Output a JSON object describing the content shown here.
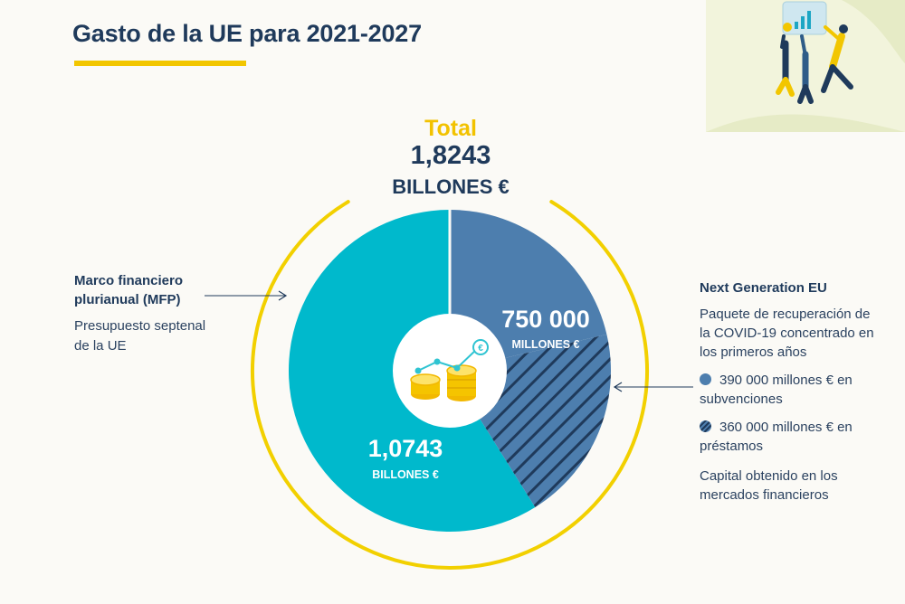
{
  "title": "Gasto de la UE para 2021-2027",
  "colors": {
    "mfp": "#00b9cc",
    "ngeu": "#4d7eae",
    "hatch": "#1f3a5b",
    "ring": "#f2d000",
    "title": "#1f3a5b",
    "accent": "#f2c200"
  },
  "chart_data": {
    "type": "pie",
    "total": {
      "label": "Total",
      "value": "1,8243",
      "unit": "BILLONES €"
    },
    "segments": [
      {
        "name": "Marco financiero plurianual (MFP)",
        "value_eur_billion": 1074.3,
        "value_text": "1,0743",
        "unit_text": "BILLONES €",
        "color": "#00b9cc",
        "pattern": "solid"
      },
      {
        "name": "Next Generation EU",
        "value_eur_billion": 750,
        "value_text": "750 000",
        "unit_text": "MILLONES €",
        "color": "#4d7eae",
        "pattern": "solid",
        "subsegments": [
          {
            "name": "subvenciones",
            "value_eur_billion": 390,
            "pattern": "solid"
          },
          {
            "name": "préstamos",
            "value_eur_billion": 360,
            "pattern": "hatched"
          }
        ]
      }
    ],
    "center_icon": "coins-growth-icon"
  },
  "left_annotation": {
    "heading": "Marco financiero plurianual (MFP)",
    "description": "Presupuesto septenal de la UE"
  },
  "right_annotation": {
    "heading": "Next Generation EU",
    "description": "Paquete de recuperación de la COVID-19 concentrado en los primeros años",
    "legend": [
      {
        "text": "390 000 millones € en subvenciones",
        "icon": "solid-dot"
      },
      {
        "text": "360 000 millones € en préstamos",
        "icon": "hatched-dot"
      }
    ],
    "footnote": "Capital obtenido en los mercados financieros"
  },
  "illustration": {
    "icon": "people-holding-chart-illustration"
  }
}
